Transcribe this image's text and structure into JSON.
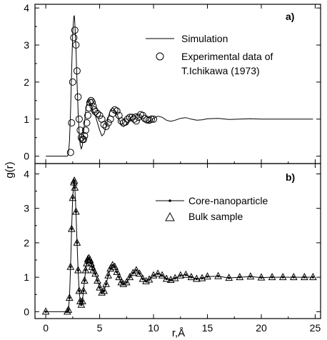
{
  "chart_data": [
    {
      "type": "line",
      "panel_label": "a)",
      "xlabel": "",
      "ylabel": "g(r)",
      "xlim": [
        -1,
        25.5
      ],
      "ylim": [
        -0.2,
        4.1
      ],
      "yticks": [
        0,
        1,
        2,
        3,
        4
      ],
      "grid": false,
      "legend_position": "top-right",
      "series": [
        {
          "name": "Simulation",
          "style": "line",
          "x": [
            0,
            2.0,
            2.1,
            2.2,
            2.3,
            2.4,
            2.5,
            2.6,
            2.65,
            2.7,
            2.8,
            2.9,
            3.0,
            3.1,
            3.2,
            3.3,
            3.4,
            3.5,
            3.6,
            3.7,
            3.8,
            3.9,
            4.0,
            4.1,
            4.2,
            4.3,
            4.4,
            4.6,
            4.8,
            5.0,
            5.2,
            5.4,
            5.6,
            5.8,
            6.0,
            6.2,
            6.4,
            6.6,
            6.8,
            7.0,
            7.2,
            7.5,
            7.8,
            8.1,
            8.4,
            8.7,
            9.0,
            9.3,
            9.6,
            10.0,
            10.4,
            10.8,
            11.2,
            11.6,
            12.0,
            12.5,
            13.0,
            13.5,
            14.0,
            14.5,
            15.0,
            16.0,
            17.0,
            18.0,
            19.0,
            20.0,
            21.0,
            22.0,
            23.0,
            24.0,
            24.8
          ],
          "y": [
            0,
            0,
            0.05,
            0.4,
            1.2,
            2.3,
            3.3,
            3.75,
            3.8,
            3.6,
            2.9,
            2.0,
            1.2,
            0.6,
            0.3,
            0.2,
            0.3,
            0.6,
            0.9,
            1.2,
            1.4,
            1.5,
            1.5,
            1.48,
            1.4,
            1.3,
            1.2,
            1.1,
            0.9,
            0.7,
            0.55,
            0.6,
            0.8,
            1.05,
            1.25,
            1.3,
            1.25,
            1.15,
            1.0,
            0.85,
            0.8,
            0.85,
            1.0,
            1.12,
            1.15,
            1.08,
            0.95,
            0.9,
            0.93,
            1.02,
            1.08,
            1.05,
            0.97,
            0.94,
            0.97,
            1.02,
            1.04,
            1.0,
            0.97,
            0.98,
            1.01,
            1.02,
            0.99,
            1.0,
            1.01,
            1.0,
            1.0,
            1.0,
            1.0,
            1.0,
            1.0
          ]
        },
        {
          "name": "Experimental data of T.Ichikawa (1973)",
          "style": "markers-circle",
          "x": [
            2.3,
            2.4,
            2.5,
            2.6,
            2.7,
            2.8,
            2.9,
            3.0,
            3.1,
            3.2,
            3.3,
            3.4,
            3.5,
            3.6,
            3.7,
            3.8,
            3.9,
            4.0,
            4.1,
            4.2,
            4.3,
            4.4,
            4.5,
            4.6,
            4.8,
            5.0,
            5.2,
            5.4,
            5.6,
            5.8,
            6.0,
            6.2,
            6.4,
            6.6,
            6.8,
            7.0,
            7.2,
            7.4,
            7.6,
            7.8,
            8.0,
            8.2,
            8.4,
            8.6,
            8.8,
            9.0,
            9.2,
            9.4,
            9.6,
            9.8,
            10.0
          ],
          "y": [
            0.1,
            0.9,
            2.0,
            3.2,
            3.4,
            3.0,
            2.3,
            1.6,
            1.0,
            0.7,
            0.5,
            0.45,
            0.45,
            0.55,
            0.7,
            0.9,
            1.1,
            1.3,
            1.45,
            1.5,
            1.45,
            1.35,
            1.25,
            1.2,
            1.15,
            1.1,
            1.0,
            0.85,
            0.8,
            0.9,
            1.0,
            1.15,
            1.25,
            1.22,
            1.1,
            0.95,
            0.9,
            0.92,
            1.0,
            1.05,
            1.05,
            1.0,
            0.95,
            1.05,
            1.12,
            1.1,
            1.02,
            0.98,
            0.97,
            1.0,
            1.0
          ]
        }
      ]
    },
    {
      "type": "line",
      "panel_label": "b)",
      "xlabel": "r,Å",
      "ylabel": "g(r)",
      "xlim": [
        -1,
        25.5
      ],
      "ylim": [
        -0.2,
        4.3
      ],
      "xticks": [
        0,
        5,
        10,
        15,
        20,
        25
      ],
      "yticks": [
        0,
        1,
        2,
        3,
        4
      ],
      "grid": false,
      "legend_position": "top-right",
      "series": [
        {
          "name": "Core-nanoparticle",
          "style": "line-dots",
          "x": [
            0,
            2.0,
            2.1,
            2.2,
            2.3,
            2.4,
            2.5,
            2.6,
            2.65,
            2.7,
            2.8,
            2.9,
            3.0,
            3.1,
            3.2,
            3.3,
            3.4,
            3.5,
            3.6,
            3.7,
            3.8,
            3.9,
            4.0,
            4.1,
            4.2,
            4.3,
            4.4,
            4.6,
            4.8,
            5.0,
            5.2,
            5.4,
            5.6,
            5.8,
            6.0,
            6.2,
            6.4,
            6.6,
            6.8,
            7.0,
            7.2,
            7.5,
            7.8,
            8.1,
            8.4,
            8.7,
            9.0,
            9.3,
            9.6,
            10.0,
            10.4,
            10.8,
            11.2,
            11.6,
            12.0,
            12.5,
            13.0,
            13.5,
            14.0,
            14.5,
            15.0,
            16.0,
            17.0,
            18.0,
            19.0,
            20.0,
            21.0,
            22.0,
            23.0,
            24.0,
            24.8
          ],
          "y": [
            0,
            0,
            0.05,
            0.4,
            1.3,
            2.4,
            3.3,
            3.75,
            3.8,
            3.6,
            2.9,
            2.0,
            1.2,
            0.6,
            0.3,
            0.2,
            0.3,
            0.6,
            0.9,
            1.2,
            1.4,
            1.52,
            1.55,
            1.5,
            1.4,
            1.3,
            1.2,
            1.1,
            0.9,
            0.7,
            0.55,
            0.6,
            0.8,
            1.05,
            1.25,
            1.35,
            1.3,
            1.15,
            1.0,
            0.85,
            0.8,
            0.85,
            1.0,
            1.12,
            1.2,
            1.1,
            0.95,
            0.88,
            0.93,
            1.05,
            1.1,
            1.05,
            0.95,
            0.92,
            0.97,
            1.05,
            1.07,
            1.0,
            0.95,
            0.97,
            1.02,
            1.03,
            0.98,
            1.0,
            1.02,
            0.99,
            1.0,
            1.0,
            1.0,
            1.0,
            1.0
          ]
        },
        {
          "name": "Bulk sample",
          "style": "markers-triangle",
          "x": [
            0,
            2.0,
            2.1,
            2.2,
            2.3,
            2.4,
            2.5,
            2.6,
            2.65,
            2.7,
            2.8,
            2.9,
            3.0,
            3.1,
            3.2,
            3.3,
            3.4,
            3.5,
            3.6,
            3.7,
            3.8,
            3.9,
            4.0,
            4.1,
            4.2,
            4.3,
            4.4,
            4.6,
            4.8,
            5.0,
            5.2,
            5.4,
            5.6,
            5.8,
            6.0,
            6.2,
            6.4,
            6.6,
            6.8,
            7.0,
            7.2,
            7.5,
            7.8,
            8.1,
            8.4,
            8.7,
            9.0,
            9.3,
            9.6,
            10.0,
            10.4,
            10.8,
            11.2,
            11.6,
            12.0,
            12.5,
            13.0,
            13.5,
            14.0,
            14.5,
            15.0,
            16.0,
            17.0,
            18.0,
            19.0,
            20.0,
            21.0,
            22.0,
            23.0,
            24.0,
            24.8
          ],
          "y": [
            0,
            0,
            0.05,
            0.4,
            1.3,
            2.4,
            3.3,
            3.75,
            3.8,
            3.6,
            2.9,
            2.0,
            1.2,
            0.6,
            0.3,
            0.2,
            0.3,
            0.6,
            0.9,
            1.2,
            1.4,
            1.52,
            1.55,
            1.5,
            1.4,
            1.3,
            1.2,
            1.1,
            0.9,
            0.7,
            0.55,
            0.6,
            0.8,
            1.05,
            1.25,
            1.35,
            1.3,
            1.15,
            1.0,
            0.85,
            0.8,
            0.85,
            1.0,
            1.12,
            1.2,
            1.1,
            0.95,
            0.88,
            0.93,
            1.05,
            1.1,
            1.05,
            0.95,
            0.92,
            0.97,
            1.05,
            1.07,
            1.0,
            0.95,
            0.97,
            1.02,
            1.03,
            0.98,
            1.0,
            1.02,
            0.99,
            1.0,
            1.0,
            1.0,
            1.0,
            1.0
          ]
        }
      ]
    }
  ]
}
